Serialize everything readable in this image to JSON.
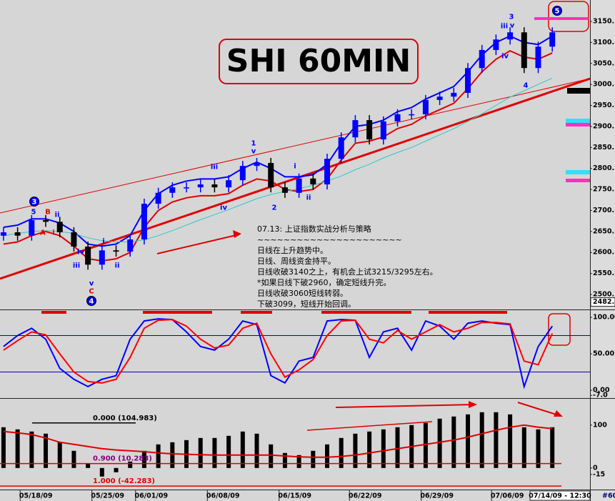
{
  "chart_data": [
    {
      "type": "candlestick",
      "title": "SHI 60MIN",
      "xlim": [
        -0.25,
        41.68
      ],
      "ylim": [
        2466,
        3201
      ],
      "yticks": [
        {
          "value": 2500,
          "label": "2500."
        },
        {
          "value": 2550,
          "label": "2550."
        },
        {
          "value": 2600,
          "label": "2600."
        },
        {
          "value": 2650,
          "label": "2650."
        },
        {
          "value": 2700,
          "label": "2700."
        },
        {
          "value": 2750,
          "label": "2750."
        },
        {
          "value": 2800,
          "label": "2800."
        },
        {
          "value": 2850,
          "label": "2850."
        },
        {
          "value": 2900,
          "label": "2900."
        },
        {
          "value": 2950,
          "label": "2950."
        },
        {
          "value": 3000,
          "label": "3000."
        },
        {
          "value": 3050,
          "label": "3050."
        },
        {
          "value": 3100,
          "label": "3100."
        },
        {
          "value": 3150,
          "label": "3150."
        }
      ],
      "open": [
        2640,
        2648,
        2640,
        2677,
        2673,
        2648,
        2614,
        2571,
        2605,
        2602,
        2631,
        2716,
        2742,
        2755,
        2755,
        2762,
        2755,
        2772,
        2806,
        2813,
        2755,
        2742,
        2776,
        2762,
        2823,
        2874,
        2915,
        2869,
        2912,
        2929,
        2929,
        2963,
        2971,
        2980,
        3039,
        3082,
        3107,
        3124,
        3039,
        3090
      ],
      "high": [
        2660,
        2660,
        2689,
        2689,
        2685,
        2660,
        2626,
        2617,
        2617,
        2643,
        2728,
        2754,
        2767,
        2767,
        2774,
        2774,
        2784,
        2818,
        2825,
        2825,
        2767,
        2788,
        2788,
        2835,
        2886,
        2927,
        2927,
        2924,
        2941,
        2941,
        2975,
        2983,
        2992,
        3051,
        3094,
        3119,
        3136,
        3136,
        3102,
        3136
      ],
      "low": [
        2628,
        2628,
        2628,
        2661,
        2636,
        2602,
        2559,
        2559,
        2590,
        2590,
        2619,
        2704,
        2730,
        2743,
        2743,
        2743,
        2743,
        2760,
        2794,
        2743,
        2730,
        2730,
        2750,
        2750,
        2811,
        2862,
        2857,
        2857,
        2900,
        2917,
        2917,
        2951,
        2959,
        2968,
        3027,
        3070,
        3095,
        3027,
        3027,
        3078
      ],
      "close": [
        2648,
        2640,
        2677,
        2673,
        2648,
        2614,
        2571,
        2605,
        2602,
        2631,
        2716,
        2742,
        2755,
        2755,
        2762,
        2755,
        2772,
        2806,
        2813,
        2755,
        2742,
        2776,
        2762,
        2823,
        2874,
        2915,
        2869,
        2912,
        2929,
        2929,
        2963,
        2971,
        2980,
        3039,
        3082,
        3107,
        3124,
        3039,
        3090,
        3124
      ],
      "up_color": "#0000ff",
      "down_color": "#000000",
      "series": [
        {
          "color": "#0000ff",
          "values": [
            2660,
            2665,
            2680,
            2680,
            2670,
            2650,
            2620,
            2615,
            2620,
            2640,
            2700,
            2740,
            2760,
            2770,
            2775,
            2775,
            2780,
            2800,
            2815,
            2800,
            2780,
            2780,
            2785,
            2810,
            2860,
            2900,
            2905,
            2915,
            2935,
            2945,
            2965,
            2980,
            2995,
            3030,
            3070,
            3100,
            3115,
            3100,
            3095,
            3115
          ]
        },
        {
          "color": "#e00000",
          "values": [
            2620,
            2625,
            2640,
            2650,
            2640,
            2615,
            2585,
            2580,
            2585,
            2600,
            2660,
            2700,
            2720,
            2730,
            2735,
            2735,
            2740,
            2760,
            2775,
            2770,
            2750,
            2745,
            2750,
            2775,
            2820,
            2860,
            2865,
            2875,
            2895,
            2905,
            2925,
            2940,
            2955,
            2990,
            3030,
            3060,
            3080,
            3065,
            3060,
            3075
          ]
        },
        {
          "color": "#30c8c8",
          "values": [
            2640,
            2645,
            2650,
            2652,
            2650,
            2645,
            2635,
            2628,
            2625,
            2625,
            2630,
            2640,
            2652,
            2665,
            2678,
            2690,
            2702,
            2715,
            2728,
            2738,
            2745,
            2752,
            2760,
            2770,
            2782,
            2797,
            2810,
            2825,
            2838,
            2850,
            2865,
            2880,
            2895,
            2912,
            2930,
            2950,
            2970,
            2985,
            3000,
            3015
          ]
        }
      ],
      "cursor_price": {
        "value": 2482,
        "label": "2482."
      },
      "notes": [
        "07.13: 上证指数实战分析与策略",
        "~~~~~~~~~~~~~~~~~~~~~~",
        "日线在上升趋势中。",
        "日线、周线资金持平。",
        "日线收破3140之上，有机会上试3215/3295左右。",
        "*如果日线下破2960，确定短线升完。",
        "日线收破3060短线转弱。",
        "下破3099，短线开始回调。"
      ],
      "annotations": [
        "3",
        "5",
        "B",
        "ii",
        "A",
        "i",
        "iv",
        "iii",
        "i",
        "ii",
        "v",
        "C",
        "4",
        "iii",
        "iv",
        "1",
        "v",
        "2",
        "i",
        "ii",
        "3",
        "iii",
        "v",
        "iv",
        "4",
        "5"
      ]
    },
    {
      "type": "line",
      "xlim": [
        -0.25,
        41.68
      ],
      "ylim": [
        -8.8,
        106.9
      ],
      "yticks": [
        {
          "value": 100,
          "label": "100.00"
        },
        {
          "value": 50,
          "label": "50.00"
        },
        {
          "value": 0,
          "label": "0.00"
        },
        {
          "value": -7,
          "label": "-7.0"
        }
      ],
      "levels": [
        75,
        25
      ],
      "level_color": "#0000c0",
      "series": [
        {
          "color": "#0000ff",
          "values": [
            60,
            75,
            85,
            70,
            30,
            15,
            5,
            15,
            20,
            70,
            95,
            98,
            97,
            80,
            60,
            55,
            70,
            95,
            90,
            20,
            10,
            40,
            45,
            95,
            97,
            96,
            45,
            80,
            85,
            55,
            95,
            88,
            70,
            92,
            95,
            92,
            90,
            5,
            60,
            88
          ]
        },
        {
          "color": "#ff0000",
          "values": [
            55,
            68,
            80,
            76,
            50,
            25,
            12,
            10,
            15,
            45,
            85,
            96,
            97,
            88,
            70,
            58,
            62,
            85,
            92,
            50,
            18,
            28,
            42,
            75,
            95,
            96,
            70,
            65,
            82,
            70,
            80,
            90,
            80,
            85,
            93,
            93,
            91,
            40,
            35,
            78
          ]
        }
      ]
    },
    {
      "type": "bar",
      "xlim": [
        -0.25,
        41.68
      ],
      "ylim": [
        -47,
        158
      ],
      "yticks": [
        100,
        0,
        -15
      ],
      "values": [
        95,
        90,
        85,
        80,
        60,
        40,
        10,
        -20,
        -10,
        15,
        40,
        55,
        60,
        65,
        70,
        70,
        75,
        85,
        80,
        55,
        35,
        30,
        40,
        55,
        70,
        80,
        85,
        90,
        95,
        100,
        105,
        115,
        120,
        125,
        130,
        130,
        125,
        95,
        90,
        95
      ],
      "color": "#000000",
      "series": [
        {
          "color": "#e00000",
          "values": [
            85,
            82,
            78,
            70,
            60,
            55,
            50,
            45,
            42,
            40,
            38,
            35,
            33,
            32,
            31,
            30,
            30,
            30,
            30,
            30,
            28,
            26,
            25,
            25,
            27,
            30,
            35,
            40,
            45,
            50,
            55,
            60,
            65,
            72,
            80,
            88,
            95,
            100,
            95,
            92
          ]
        }
      ],
      "levels": [
        {
          "value": 104.983,
          "label": "0.000 (104.983)"
        },
        {
          "value": 10.283,
          "label": "0.900 (10.283)"
        },
        {
          "value": -42.283,
          "label": "1.000 (-42.283)"
        }
      ],
      "xticks": [
        {
          "value": 2.3,
          "label": "05/18/09"
        },
        {
          "value": 7.4,
          "label": "05/25/09"
        },
        {
          "value": 10.5,
          "label": "06/01/09"
        },
        {
          "value": 15.6,
          "label": "06/08/09"
        },
        {
          "value": 20.7,
          "label": "06/15/09"
        },
        {
          "value": 25.7,
          "label": "06/22/09"
        },
        {
          "value": 30.8,
          "label": "06/29/09"
        },
        {
          "value": 35.8,
          "label": "07/06/09"
        }
      ],
      "cursor_time": "07/14/09 - 12:30",
      "interval": "#60"
    }
  ]
}
